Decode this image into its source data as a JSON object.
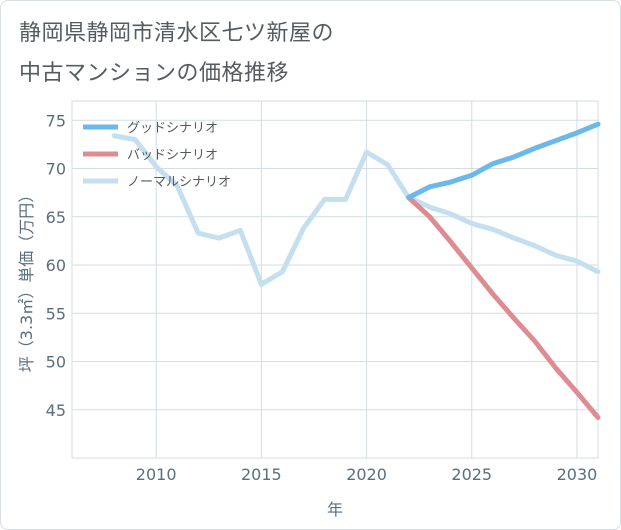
{
  "page": {
    "title_line1": "静岡県静岡市清水区七ツ新屋の",
    "title_line2": "中古マンションの価格推移"
  },
  "chart_data": {
    "type": "line",
    "title": "静岡県静岡市清水区七ツ新屋の中古マンションの価格推移",
    "xlabel": "年",
    "ylabel": "坪（3.3㎡）単価（万円）",
    "xlim": [
      2006,
      2031
    ],
    "ylim": [
      40,
      77
    ],
    "xticks": [
      2010,
      2015,
      2020,
      2025,
      2030
    ],
    "yticks": [
      45,
      50,
      55,
      60,
      65,
      70,
      75
    ],
    "grid": true,
    "legend_position": "top-left",
    "series": [
      {
        "name": "グッドシナリオ",
        "color": "#6bb9ec",
        "x": [
          2022,
          2023,
          2024,
          2025,
          2026,
          2027,
          2028,
          2029,
          2030,
          2031
        ],
        "y": [
          67.0,
          68.1,
          68.6,
          69.3,
          70.5,
          71.2,
          72.1,
          72.9,
          73.7,
          74.6
        ]
      },
      {
        "name": "バッドシナリオ",
        "color": "#dd8d91",
        "x": [
          2022,
          2023,
          2024,
          2025,
          2026,
          2027,
          2028,
          2029,
          2030,
          2031
        ],
        "y": [
          67.0,
          65.0,
          62.4,
          59.7,
          57.0,
          54.5,
          52.1,
          49.3,
          46.8,
          44.2
        ]
      },
      {
        "name": "ノーマルシナリオ",
        "color": "#c3dff0",
        "x": [
          2008,
          2009,
          2010,
          2011,
          2012,
          2013,
          2014,
          2015,
          2016,
          2017,
          2018,
          2019,
          2020,
          2021,
          2022,
          2023,
          2024,
          2025,
          2026,
          2027,
          2028,
          2029,
          2030,
          2031
        ],
        "y": [
          73.4,
          73.0,
          70.2,
          68.2,
          63.3,
          62.8,
          63.6,
          58.0,
          59.3,
          63.8,
          66.8,
          66.8,
          71.7,
          70.4,
          67.0,
          66.0,
          65.3,
          64.3,
          63.7,
          62.8,
          62.0,
          61.0,
          60.4,
          59.3
        ]
      }
    ]
  }
}
